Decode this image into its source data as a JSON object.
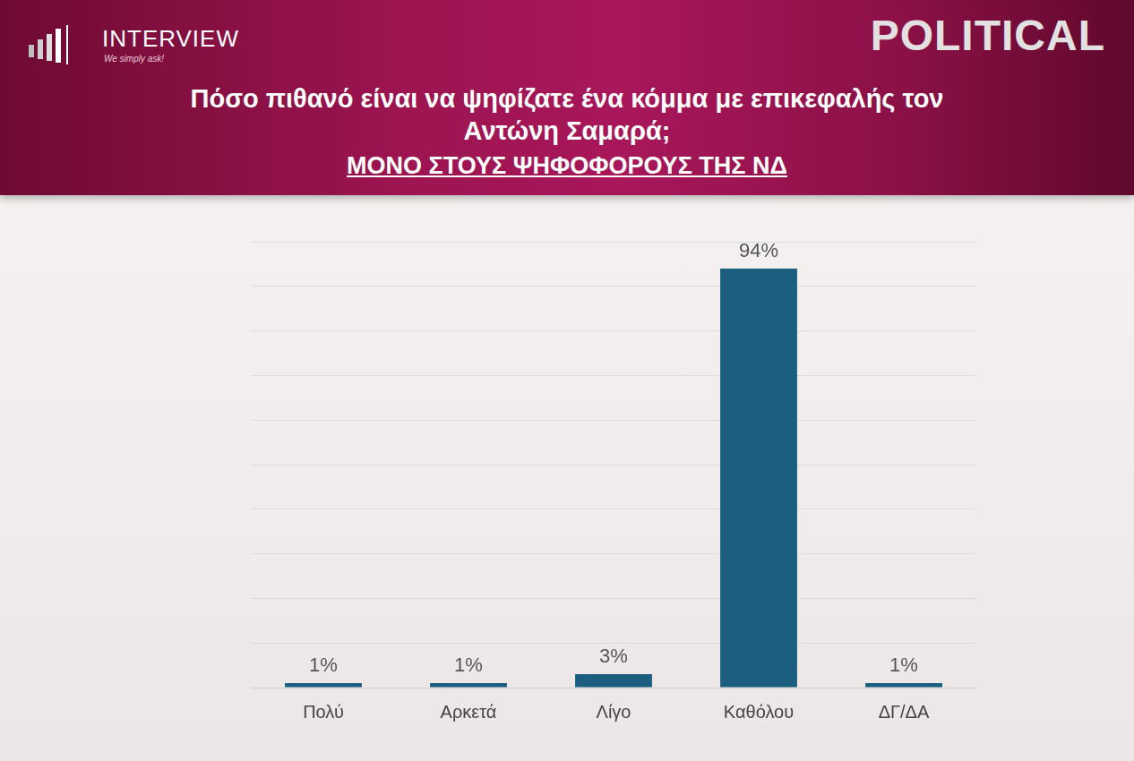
{
  "logo": {
    "text": "INTERVIEW",
    "tagline": "We simply ask!"
  },
  "brand": "POLITICAL",
  "chart_data": {
    "type": "bar",
    "title": "Πόσο πιθανό είναι να ψηφίζατε ένα κόμμα με επικεφαλής τον Αντώνη Σαμαρά;",
    "subtitle": "ΜΟΝΟ ΣΤΟΥΣ ΨΗΦΟΦΟΡΟΥΣ ΤΗΣ ΝΔ",
    "categories": [
      "Πολύ",
      "Αρκετά",
      "Λίγο",
      "Καθόλου",
      "ΔΓ/ΔΑ"
    ],
    "values": [
      1,
      1,
      3,
      94,
      1
    ],
    "value_labels": [
      "1%",
      "1%",
      "3%",
      "94%",
      "1%"
    ],
    "color": "#1b5e80",
    "ylim": [
      0,
      100
    ],
    "yticks": [
      0,
      10,
      20,
      30,
      40,
      50,
      60,
      70,
      80,
      90,
      100
    ],
    "grid": true,
    "data_labels": true,
    "tick_labels": "x"
  }
}
